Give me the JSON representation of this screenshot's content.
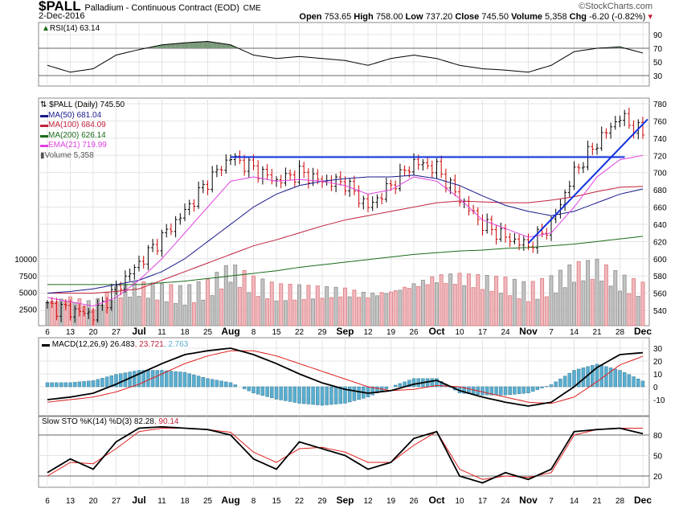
{
  "header": {
    "symbol": "$PALL",
    "name": "Palladium - Continuous Contract (EOD)",
    "exchange": "CME",
    "date": "2-Dec-2016",
    "copyright": "©StockCharts.com",
    "open_label": "Open",
    "open": "753.65",
    "high_label": "High",
    "high": "758.00",
    "low_label": "Low",
    "low": "737.20",
    "close_label": "Close",
    "close": "745.50",
    "volume_label": "Volume",
    "volume": "5,358",
    "chg_label": "Chg",
    "chg": "-6.20 (-0.82%)"
  },
  "legend": {
    "rsi": "RSI(14) 63.14",
    "price": "$PALL (Daily) 745.50",
    "ma50": "MA(50) 681.04",
    "ma100": "MA(100) 684.09",
    "ma200": "MA(200) 626.14",
    "ema21": "EMA(21) 719.99",
    "volume": "Volume 5,358",
    "macd_name": "MACD(12,26,9) 26.483",
    "macd_signal": ", 23.721",
    "macd_hist": ", 2.763",
    "sto_name": "Slow STO %K(14) %D(3) 82.28",
    "sto_d": ", 90.14"
  },
  "colors": {
    "ma50": "#1a1a8c",
    "ma100": "#c0203a",
    "ma200": "#1a6b1a",
    "ema21": "#e040e0",
    "trend": "#1030e0",
    "hist": "#5aaed0"
  },
  "chart_data": {
    "type": "line",
    "title": "$PALL Palladium - Continuous Contract (EOD) Daily",
    "x": [
      "6",
      "13",
      "20",
      "27",
      "Jul",
      "11",
      "18",
      "25",
      "Aug",
      "8",
      "15",
      "22",
      "29",
      "Sep",
      "12",
      "19",
      "26",
      "Oct",
      "10",
      "17",
      "24",
      "Nov",
      "7",
      "14",
      "21",
      "28",
      "Dec"
    ],
    "bold_ticks": [
      "Jul",
      "Aug",
      "Sep",
      "Oct",
      "Nov",
      "Dec"
    ],
    "price_ticks": [
      780,
      760,
      740,
      720,
      700,
      680,
      660,
      640,
      620,
      600,
      580,
      560,
      540
    ],
    "price_ylim": [
      540,
      780
    ],
    "volume_ticks": [
      10000,
      7500,
      5000,
      2500
    ],
    "rsi_ticks": [
      90,
      70,
      50,
      30
    ],
    "macd_ticks": [
      30,
      20,
      10,
      0,
      -10
    ],
    "sto_ticks": [
      80,
      50,
      20
    ],
    "series": [
      {
        "name": "Close",
        "values": [
          545,
          540,
          535,
          565,
          595,
          625,
          655,
          690,
          718,
          705,
          690,
          700,
          690,
          688,
          660,
          685,
          712,
          705,
          670,
          640,
          625,
          615,
          640,
          700,
          735,
          765,
          745
        ]
      },
      {
        "name": "MA(50)",
        "values": [
          560,
          562,
          565,
          570,
          575,
          585,
          600,
          620,
          640,
          660,
          675,
          685,
          690,
          693,
          695,
          695,
          697,
          693,
          685,
          673,
          662,
          655,
          650,
          655,
          665,
          675,
          681
        ]
      },
      {
        "name": "MA(100)",
        "values": [
          560,
          560,
          560,
          562,
          565,
          575,
          585,
          595,
          605,
          615,
          622,
          630,
          638,
          645,
          650,
          655,
          660,
          665,
          667,
          666,
          665,
          665,
          668,
          672,
          678,
          683,
          684
        ]
      },
      {
        "name": "MA(200)",
        "values": [
          570,
          570,
          570,
          570,
          570,
          572,
          574,
          577,
          580,
          583,
          586,
          590,
          593,
          596,
          599,
          602,
          605,
          607,
          609,
          610,
          612,
          613,
          615,
          617,
          620,
          623,
          626
        ]
      },
      {
        "name": "EMA(21)",
        "values": [
          555,
          550,
          545,
          555,
          575,
          600,
          630,
          660,
          690,
          695,
          690,
          692,
          690,
          685,
          675,
          680,
          695,
          690,
          670,
          645,
          635,
          625,
          630,
          660,
          695,
          715,
          720
        ]
      },
      {
        "name": "Volume",
        "values": [
          3500,
          4000,
          3000,
          5000,
          5500,
          5000,
          4500,
          5500,
          8000,
          6000,
          5000,
          5000,
          5000,
          5000,
          4500,
          5000,
          6000,
          7000,
          7000,
          6500,
          6000,
          5000,
          6000,
          8000,
          8500,
          6500,
          5358
        ]
      },
      {
        "name": "RSI(14)",
        "values": [
          45,
          35,
          40,
          60,
          68,
          75,
          78,
          80,
          75,
          60,
          55,
          58,
          55,
          52,
          45,
          55,
          60,
          55,
          45,
          40,
          38,
          35,
          45,
          65,
          70,
          72,
          63
        ]
      },
      {
        "name": "MACD",
        "values": [
          -10,
          -8,
          -5,
          2,
          10,
          18,
          25,
          28,
          30,
          25,
          18,
          10,
          3,
          -2,
          -5,
          -3,
          2,
          5,
          -3,
          -8,
          -12,
          -15,
          -12,
          0,
          15,
          25,
          26.5
        ]
      },
      {
        "name": "Signal",
        "values": [
          -12,
          -10,
          -8,
          -4,
          2,
          10,
          18,
          24,
          28,
          28,
          24,
          18,
          12,
          6,
          0,
          -3,
          -2,
          1,
          0,
          -4,
          -8,
          -12,
          -13,
          -8,
          4,
          17,
          23.7
        ]
      },
      {
        "name": "%K",
        "values": [
          25,
          45,
          30,
          70,
          90,
          92,
          90,
          88,
          80,
          45,
          30,
          70,
          60,
          50,
          30,
          40,
          75,
          85,
          20,
          10,
          25,
          15,
          30,
          85,
          88,
          90,
          82
        ]
      },
      {
        "name": "%D",
        "values": [
          20,
          40,
          38,
          60,
          85,
          90,
          90,
          88,
          84,
          55,
          40,
          60,
          62,
          55,
          40,
          40,
          65,
          85,
          30,
          15,
          20,
          18,
          25,
          80,
          88,
          90,
          90
        ]
      }
    ],
    "trendlines": [
      {
        "from": "Aug",
        "to": "28",
        "start": 718,
        "end": 718
      },
      {
        "from": "Nov",
        "to": "Dec",
        "start": 618,
        "end": 762
      }
    ]
  }
}
